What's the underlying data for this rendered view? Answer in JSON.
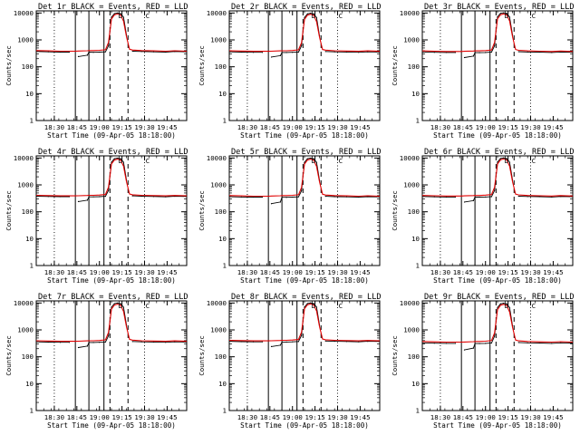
{
  "figure": {
    "background": "#ffffff",
    "axis_color": "#000000",
    "events_color": "#000000",
    "lld_color": "#e00000"
  },
  "shared": {
    "xlabel": "Start Time (09-Apr-05 18:18:00)",
    "ylabel": "Counts/sec",
    "xtick_labels": [
      "18:30",
      "18:45",
      "19:00",
      "19:15",
      "19:30",
      "19:45"
    ],
    "ytick_labels": [
      "1",
      "10",
      "100",
      "1000",
      "10000"
    ],
    "annotation_markers": [
      "D",
      "C"
    ]
  },
  "chart_data": [
    {
      "type": "line",
      "title": "Det 1r BLACK = Events, RED = LLD",
      "xlabel": "Start Time (09-Apr-05 18:18:00)",
      "ylabel": "Counts/sec",
      "yscale": "log",
      "ylim": [
        1,
        12000
      ],
      "xlim": [
        "18:18",
        "19:58"
      ],
      "grid": false,
      "x": [
        "18:18",
        "18:26",
        "18:34",
        "18:40",
        "18:44",
        "18:46",
        "18:52",
        "18:53",
        "18:56",
        "19:00",
        "19:04",
        "19:06",
        "19:08",
        "19:10",
        "19:12",
        "19:14",
        "19:16",
        "19:18",
        "19:20",
        "19:22",
        "19:28",
        "19:36",
        "19:44",
        "19:50",
        "19:58"
      ],
      "series": [
        {
          "name": "Events",
          "values": [
            370,
            360,
            350,
            350,
            null,
            240,
            270,
            350,
            345,
            350,
            360,
            600,
            7000,
            9500,
            10000,
            9500,
            7000,
            1500,
            null,
            380,
            370,
            360,
            350,
            370,
            360
          ]
        },
        {
          "name": "LLD",
          "values": [
            400,
            390,
            380,
            380,
            380,
            385,
            395,
            400,
            400,
            410,
            430,
            800,
            6000,
            8500,
            9200,
            8500,
            5000,
            1300,
            450,
            420,
            400,
            390,
            380,
            395,
            380
          ]
        }
      ],
      "vlines_solid": [
        "18:44",
        "18:53",
        "19:03"
      ],
      "vlines_dashed": [
        "19:07",
        "19:19"
      ],
      "vlines_dotted": [
        "18:30",
        "19:30"
      ]
    },
    {
      "type": "line",
      "title": "Det 2r BLACK = Events, RED = LLD",
      "xlabel": "Start Time (09-Apr-05 18:18:00)",
      "ylabel": "Counts/sec",
      "yscale": "log",
      "ylim": [
        1,
        12000
      ],
      "xlim": [
        "18:18",
        "19:58"
      ],
      "grid": false,
      "x": [
        "18:18",
        "18:26",
        "18:34",
        "18:40",
        "18:44",
        "18:46",
        "18:52",
        "18:53",
        "18:56",
        "19:00",
        "19:04",
        "19:06",
        "19:08",
        "19:10",
        "19:12",
        "19:14",
        "19:16",
        "19:18",
        "19:20",
        "19:22",
        "19:28",
        "19:36",
        "19:44",
        "19:50",
        "19:58"
      ],
      "series": [
        {
          "name": "Events",
          "values": [
            360,
            350,
            345,
            345,
            null,
            230,
            260,
            340,
            340,
            345,
            350,
            600,
            6800,
            9300,
            9800,
            9300,
            6800,
            1400,
            null,
            370,
            360,
            355,
            345,
            360,
            355
          ]
        },
        {
          "name": "LLD",
          "values": [
            395,
            385,
            375,
            375,
            375,
            380,
            390,
            395,
            395,
            405,
            425,
            780,
            5800,
            8300,
            9000,
            8300,
            4800,
            1250,
            440,
            415,
            395,
            385,
            375,
            390,
            375
          ]
        }
      ],
      "vlines_solid": [
        "18:44",
        "18:53",
        "19:03"
      ],
      "vlines_dashed": [
        "19:07",
        "19:19"
      ],
      "vlines_dotted": [
        "18:30",
        "19:30"
      ]
    },
    {
      "type": "line",
      "title": "Det 3r BLACK = Events, RED = LLD",
      "xlabel": "Start Time (09-Apr-05 18:18:00)",
      "ylabel": "Counts/sec",
      "yscale": "log",
      "ylim": [
        1,
        12000
      ],
      "xlim": [
        "18:18",
        "19:58"
      ],
      "grid": false,
      "x": [
        "18:18",
        "18:26",
        "18:34",
        "18:40",
        "18:44",
        "18:46",
        "18:52",
        "18:53",
        "18:56",
        "19:00",
        "19:04",
        "19:06",
        "19:08",
        "19:10",
        "19:12",
        "19:14",
        "19:16",
        "19:18",
        "19:20",
        "19:22",
        "19:28",
        "19:36",
        "19:44",
        "19:50",
        "19:58"
      ],
      "series": [
        {
          "name": "Events",
          "values": [
            355,
            345,
            340,
            340,
            null,
            220,
            250,
            335,
            335,
            340,
            350,
            600,
            7200,
            9700,
            10200,
            9700,
            7100,
            1500,
            null,
            365,
            355,
            350,
            340,
            355,
            350
          ]
        },
        {
          "name": "LLD",
          "values": [
            390,
            380,
            370,
            370,
            370,
            375,
            385,
            390,
            390,
            400,
            420,
            800,
            6100,
            8600,
            9300,
            8600,
            5100,
            1300,
            440,
            410,
            390,
            380,
            370,
            385,
            370
          ]
        }
      ],
      "vlines_solid": [
        "18:44",
        "18:53",
        "19:03"
      ],
      "vlines_dashed": [
        "19:07",
        "19:19"
      ],
      "vlines_dotted": [
        "18:30",
        "19:30"
      ]
    },
    {
      "type": "line",
      "title": "Det 4r BLACK = Events, RED = LLD",
      "xlabel": "Start Time (09-Apr-05 18:18:00)",
      "ylabel": "Counts/sec",
      "yscale": "log",
      "ylim": [
        1,
        12000
      ],
      "xlim": [
        "18:18",
        "19:58"
      ],
      "grid": false,
      "x": [
        "18:18",
        "18:26",
        "18:34",
        "18:40",
        "18:44",
        "18:46",
        "18:52",
        "18:53",
        "18:56",
        "19:00",
        "19:04",
        "19:06",
        "19:08",
        "19:10",
        "19:12",
        "19:14",
        "19:16",
        "19:18",
        "19:20",
        "19:22",
        "19:28",
        "19:36",
        "19:44",
        "19:50",
        "19:58"
      ],
      "series": [
        {
          "name": "Events",
          "values": [
            380,
            370,
            365,
            365,
            null,
            240,
            270,
            360,
            360,
            365,
            375,
            620,
            7000,
            9400,
            9900,
            9400,
            7000,
            1500,
            null,
            390,
            380,
            370,
            360,
            380,
            370
          ]
        },
        {
          "name": "LLD",
          "values": [
            410,
            400,
            390,
            390,
            390,
            395,
            405,
            410,
            410,
            420,
            440,
            820,
            6000,
            8400,
            9100,
            8400,
            5000,
            1300,
            460,
            430,
            410,
            400,
            390,
            405,
            390
          ]
        }
      ],
      "vlines_solid": [
        "18:44",
        "18:53",
        "19:03"
      ],
      "vlines_dashed": [
        "19:07",
        "19:19"
      ],
      "vlines_dotted": [
        "18:30",
        "19:30"
      ]
    },
    {
      "type": "line",
      "title": "Det 5r BLACK = Events, RED = LLD",
      "xlabel": "Start Time (09-Apr-05 18:18:00)",
      "ylabel": "Counts/sec",
      "yscale": "log",
      "ylim": [
        1,
        12000
      ],
      "xlim": [
        "18:18",
        "19:58"
      ],
      "grid": false,
      "x": [
        "18:18",
        "18:26",
        "18:34",
        "18:40",
        "18:44",
        "18:46",
        "18:52",
        "18:53",
        "18:56",
        "19:00",
        "19:04",
        "19:06",
        "19:08",
        "19:10",
        "19:12",
        "19:14",
        "19:16",
        "19:18",
        "19:20",
        "19:22",
        "19:28",
        "19:36",
        "19:44",
        "19:50",
        "19:58"
      ],
      "series": [
        {
          "name": "Events",
          "values": [
            365,
            355,
            350,
            350,
            null,
            200,
            230,
            345,
            345,
            350,
            360,
            600,
            6900,
            9400,
            9900,
            9400,
            6900,
            1450,
            null,
            375,
            365,
            360,
            350,
            365,
            360
          ]
        },
        {
          "name": "LLD",
          "values": [
            400,
            390,
            380,
            380,
            380,
            385,
            395,
            400,
            400,
            410,
            430,
            800,
            5900,
            8400,
            9100,
            8400,
            4900,
            1280,
            450,
            420,
            400,
            390,
            380,
            395,
            380
          ]
        }
      ],
      "vlines_solid": [
        "18:44",
        "18:53",
        "19:03"
      ],
      "vlines_dashed": [
        "19:07",
        "19:19"
      ],
      "vlines_dotted": [
        "18:30",
        "19:30"
      ]
    },
    {
      "type": "line",
      "title": "Det 6r BLACK = Events, RED = LLD",
      "xlabel": "Start Time (09-Apr-05 18:18:00)",
      "ylabel": "Counts/sec",
      "yscale": "log",
      "ylim": [
        1,
        12000
      ],
      "xlim": [
        "18:18",
        "19:58"
      ],
      "grid": false,
      "x": [
        "18:18",
        "18:26",
        "18:34",
        "18:40",
        "18:44",
        "18:46",
        "18:52",
        "18:53",
        "18:56",
        "19:00",
        "19:04",
        "19:06",
        "19:08",
        "19:10",
        "19:12",
        "19:14",
        "19:16",
        "19:18",
        "19:20",
        "19:22",
        "19:28",
        "19:36",
        "19:44",
        "19:50",
        "19:58"
      ],
      "series": [
        {
          "name": "Events",
          "values": [
            370,
            360,
            355,
            355,
            null,
            230,
            260,
            350,
            350,
            355,
            365,
            610,
            7100,
            9600,
            10100,
            9600,
            7000,
            1500,
            null,
            380,
            370,
            365,
            355,
            370,
            365
          ]
        },
        {
          "name": "LLD",
          "values": [
            405,
            395,
            385,
            385,
            385,
            390,
            400,
            405,
            405,
            415,
            435,
            810,
            6000,
            8500,
            9200,
            8500,
            5000,
            1300,
            455,
            425,
            405,
            395,
            385,
            400,
            385
          ]
        }
      ],
      "vlines_solid": [
        "18:44",
        "18:53",
        "19:03"
      ],
      "vlines_dashed": [
        "19:07",
        "19:19"
      ],
      "vlines_dotted": [
        "18:30",
        "19:30"
      ]
    },
    {
      "type": "line",
      "title": "Det 7r BLACK = Events, RED = LLD",
      "xlabel": "Start Time (09-Apr-05 18:18:00)",
      "ylabel": "Counts/sec",
      "yscale": "log",
      "ylim": [
        1,
        12000
      ],
      "xlim": [
        "18:18",
        "19:58"
      ],
      "grid": false,
      "x": [
        "18:18",
        "18:26",
        "18:34",
        "18:40",
        "18:44",
        "18:46",
        "18:52",
        "18:53",
        "18:56",
        "19:00",
        "19:04",
        "19:06",
        "19:08",
        "19:10",
        "19:12",
        "19:14",
        "19:16",
        "19:18",
        "19:20",
        "19:22",
        "19:28",
        "19:36",
        "19:44",
        "19:50",
        "19:58"
      ],
      "series": [
        {
          "name": "Events",
          "values": [
            360,
            350,
            345,
            345,
            null,
            220,
            250,
            340,
            340,
            345,
            355,
            600,
            7000,
            9500,
            10000,
            9500,
            7000,
            1500,
            null,
            370,
            360,
            355,
            345,
            360,
            355
          ]
        },
        {
          "name": "LLD",
          "values": [
            395,
            385,
            375,
            375,
            375,
            380,
            390,
            395,
            395,
            405,
            425,
            790,
            5900,
            8400,
            9100,
            8400,
            4900,
            1280,
            445,
            415,
            395,
            385,
            375,
            390,
            375
          ]
        }
      ],
      "vlines_solid": [
        "18:44",
        "18:53",
        "19:03"
      ],
      "vlines_dashed": [
        "19:07",
        "19:19"
      ],
      "vlines_dotted": [
        "18:30",
        "19:30"
      ]
    },
    {
      "type": "line",
      "title": "Det 8r BLACK = Events, RED = LLD",
      "xlabel": "Start Time (09-Apr-05 18:18:00)",
      "ylabel": "Counts/sec",
      "yscale": "log",
      "ylim": [
        1,
        12000
      ],
      "xlim": [
        "18:18",
        "19:58"
      ],
      "grid": false,
      "x": [
        "18:18",
        "18:26",
        "18:34",
        "18:40",
        "18:44",
        "18:46",
        "18:52",
        "18:53",
        "18:56",
        "19:00",
        "19:04",
        "19:06",
        "19:08",
        "19:10",
        "19:12",
        "19:14",
        "19:16",
        "19:18",
        "19:20",
        "19:22",
        "19:28",
        "19:36",
        "19:44",
        "19:50",
        "19:58"
      ],
      "series": [
        {
          "name": "Events",
          "values": [
            375,
            365,
            360,
            360,
            null,
            240,
            270,
            355,
            355,
            360,
            370,
            620,
            7100,
            9600,
            10100,
            9600,
            7100,
            1500,
            null,
            385,
            375,
            370,
            360,
            375,
            370
          ]
        },
        {
          "name": "LLD",
          "values": [
            410,
            400,
            390,
            390,
            390,
            395,
            405,
            410,
            410,
            420,
            440,
            820,
            6100,
            8600,
            9300,
            8600,
            5100,
            1310,
            460,
            430,
            410,
            400,
            390,
            405,
            390
          ]
        }
      ],
      "vlines_solid": [
        "18:44",
        "18:53",
        "19:03"
      ],
      "vlines_dashed": [
        "19:07",
        "19:19"
      ],
      "vlines_dotted": [
        "18:30",
        "19:30"
      ]
    },
    {
      "type": "line",
      "title": "Det 9r BLACK = Events, RED = LLD",
      "xlabel": "Start Time (09-Apr-05 18:18:00)",
      "ylabel": "Counts/sec",
      "yscale": "log",
      "ylim": [
        1,
        12000
      ],
      "xlim": [
        "18:18",
        "19:58"
      ],
      "grid": false,
      "x": [
        "18:18",
        "18:26",
        "18:34",
        "18:40",
        "18:44",
        "18:46",
        "18:52",
        "18:53",
        "18:56",
        "19:00",
        "19:04",
        "19:06",
        "19:08",
        "19:10",
        "19:12",
        "19:14",
        "19:16",
        "19:18",
        "19:20",
        "19:22",
        "19:28",
        "19:36",
        "19:44",
        "19:50",
        "19:58"
      ],
      "series": [
        {
          "name": "Events",
          "values": [
            330,
            320,
            315,
            315,
            null,
            180,
            210,
            310,
            310,
            315,
            325,
            580,
            6800,
            9300,
            9800,
            9300,
            6800,
            1400,
            null,
            340,
            330,
            325,
            315,
            330,
            325
          ]
        },
        {
          "name": "LLD",
          "values": [
            370,
            360,
            350,
            350,
            350,
            355,
            365,
            370,
            370,
            380,
            400,
            760,
            5700,
            8200,
            8900,
            8200,
            4700,
            1230,
            420,
            390,
            370,
            360,
            350,
            365,
            350
          ]
        }
      ],
      "vlines_solid": [
        "18:44",
        "18:53",
        "19:03"
      ],
      "vlines_dashed": [
        "19:07",
        "19:19"
      ],
      "vlines_dotted": [
        "18:30",
        "19:30"
      ]
    }
  ]
}
